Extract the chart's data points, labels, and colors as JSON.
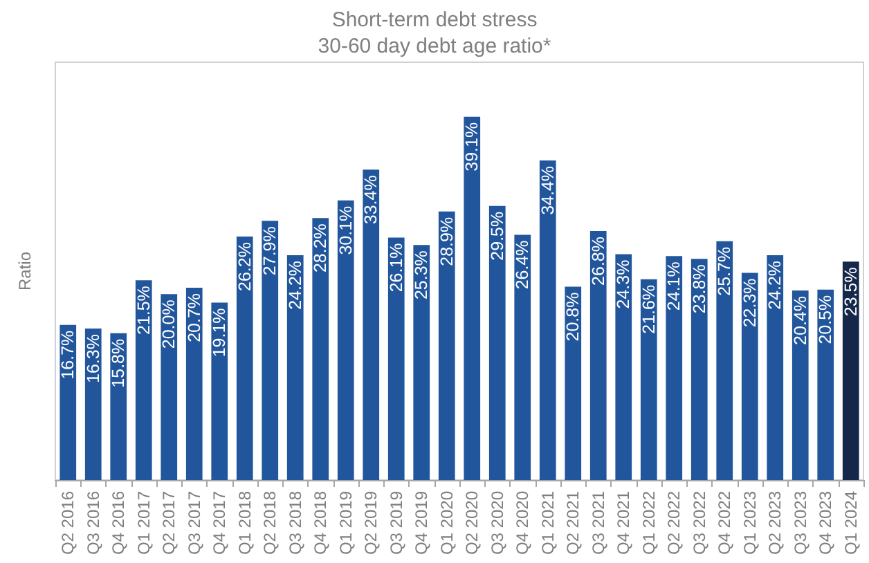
{
  "chart_data": {
    "type": "bar",
    "title": "Short-term debt stress",
    "subtitle": "30-60 day debt age ratio*",
    "ylabel": "Ratio",
    "categories": [
      "Q2 2016",
      "Q3 2016",
      "Q4 2016",
      "Q1 2017",
      "Q2 2017",
      "Q3 2017",
      "Q4 2017",
      "Q1 2018",
      "Q2 2018",
      "Q3 2018",
      "Q4 2018",
      "Q1 2019",
      "Q2 2019",
      "Q3 2019",
      "Q4 2019",
      "Q1 2020",
      "Q2 2020",
      "Q3 2020",
      "Q4 2020",
      "Q1 2021",
      "Q2 2021",
      "Q3 2021",
      "Q4 2021",
      "Q1 2022",
      "Q2 2022",
      "Q3 2022",
      "Q4 2022",
      "Q1 2023",
      "Q2 2023",
      "Q3 2023",
      "Q4 2023",
      "Q1 2024"
    ],
    "values": [
      16.7,
      16.3,
      15.8,
      21.5,
      20.0,
      20.7,
      19.1,
      26.2,
      27.9,
      24.2,
      28.2,
      30.1,
      33.4,
      26.1,
      25.3,
      28.9,
      39.1,
      29.5,
      26.4,
      34.4,
      20.8,
      26.8,
      24.3,
      21.6,
      24.1,
      23.8,
      25.7,
      22.3,
      24.2,
      20.4,
      20.5,
      23.5
    ],
    "value_labels": [
      "16.7%",
      "16.3%",
      "15.8%",
      "21.5%",
      "20.0%",
      "20.7%",
      "19.1%",
      "26.2%",
      "27.9%",
      "24.2%",
      "28.2%",
      "30.1%",
      "33.4%",
      "26.1%",
      "25.3%",
      "28.9%",
      "39.1%",
      "29.5%",
      "26.4%",
      "34.4%",
      "20.8%",
      "26.8%",
      "24.3%",
      "21.6%",
      "24.1%",
      "23.8%",
      "25.7%",
      "22.3%",
      "24.2%",
      "20.4%",
      "20.5%",
      "23.5%"
    ],
    "colors": [
      "#22569c",
      "#22569c",
      "#22569c",
      "#22569c",
      "#22569c",
      "#22569c",
      "#22569c",
      "#22569c",
      "#22569c",
      "#22569c",
      "#22569c",
      "#22569c",
      "#22569c",
      "#22569c",
      "#22569c",
      "#22569c",
      "#22569c",
      "#22569c",
      "#22569c",
      "#22569c",
      "#22569c",
      "#22569c",
      "#22569c",
      "#22569c",
      "#22569c",
      "#22569c",
      "#22569c",
      "#22569c",
      "#22569c",
      "#22569c",
      "#22569c",
      "#15284a"
    ],
    "tick_labels": "x",
    "grid": false
  }
}
